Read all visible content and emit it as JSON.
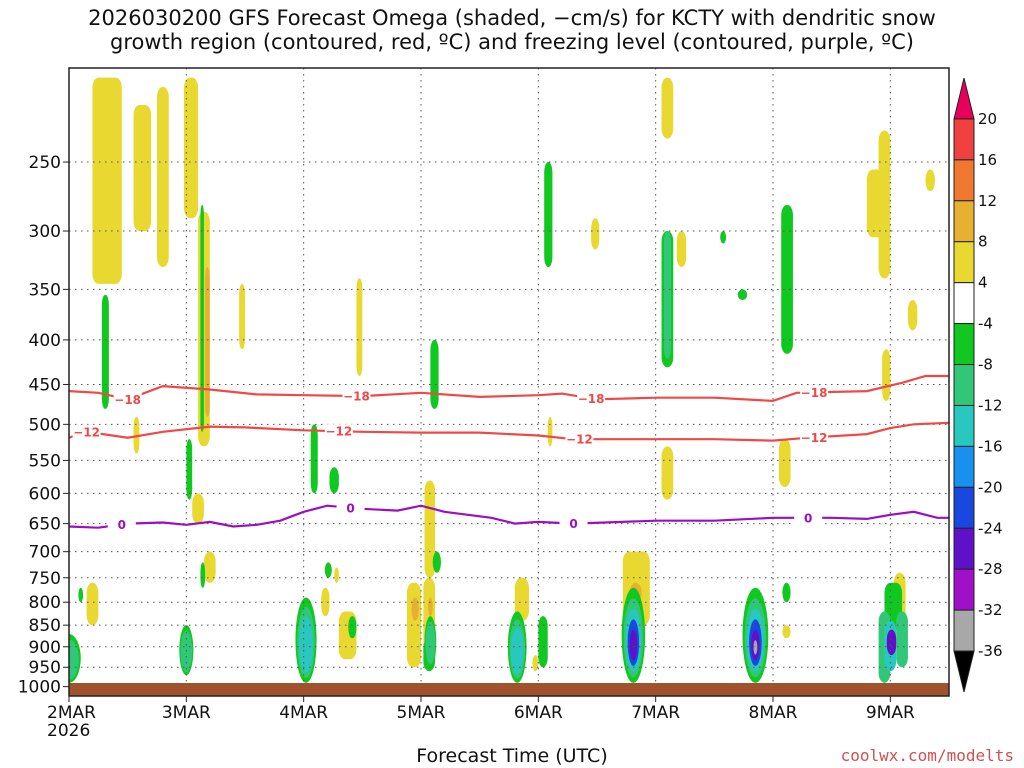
{
  "chart_data": {
    "type": "heatmap",
    "title_line1": "2026030200 GFS Forecast Omega (shaded, −cm/s) for KCTY with dendritic snow",
    "title_line2": "growth region (contoured, red, ºC) and freezing level (contoured, purple, ºC)",
    "xlabel": "Forecast Time (UTC)",
    "ylabel": "",
    "y_scale": "log-pressure",
    "y_range": [
      1025,
      195
    ],
    "y_ticks": [
      250,
      300,
      350,
      400,
      450,
      500,
      550,
      600,
      650,
      700,
      750,
      800,
      850,
      900,
      950,
      1000
    ],
    "x_range": [
      0,
      7.5
    ],
    "x_ticks": [
      {
        "day": 0,
        "label": "2MAR",
        "sub": "2026"
      },
      {
        "day": 1,
        "label": "3MAR",
        "sub": ""
      },
      {
        "day": 2,
        "label": "4MAR",
        "sub": ""
      },
      {
        "day": 3,
        "label": "5MAR",
        "sub": ""
      },
      {
        "day": 4,
        "label": "6MAR",
        "sub": ""
      },
      {
        "day": 5,
        "label": "7MAR",
        "sub": ""
      },
      {
        "day": 6,
        "label": "8MAR",
        "sub": ""
      },
      {
        "day": 7,
        "label": "9MAR",
        "sub": ""
      }
    ],
    "grid": true,
    "colorbar": {
      "levels": [
        "20",
        "16",
        "12",
        "8",
        "4",
        "-4",
        "-8",
        "-12",
        "-16",
        "-20",
        "-24",
        "-28",
        "-32",
        "-36"
      ],
      "colors": [
        "#e8005a",
        "#f04040",
        "#f07830",
        "#e8b030",
        "#e8d830",
        "#ffffff",
        "#10c820",
        "#30c878",
        "#28c8c0",
        "#1890f0",
        "#1848e0",
        "#6010c8",
        "#a010c8",
        "#a8a8a8",
        "#000000"
      ]
    },
    "contours": [
      {
        "name": "-18",
        "color": "#f04848",
        "points": [
          [
            0,
            458
          ],
          [
            0.25,
            460
          ],
          [
            0.5,
            468
          ],
          [
            0.8,
            452
          ],
          [
            1.2,
            456
          ],
          [
            1.6,
            462
          ],
          [
            2.0,
            463
          ],
          [
            2.5,
            464
          ],
          [
            3.0,
            460
          ],
          [
            3.5,
            465
          ],
          [
            4.0,
            463
          ],
          [
            4.2,
            461
          ],
          [
            4.5,
            468
          ],
          [
            5.0,
            466
          ],
          [
            5.5,
            466
          ],
          [
            6.0,
            470
          ],
          [
            6.2,
            460
          ],
          [
            6.8,
            458
          ],
          [
            7.1,
            448
          ],
          [
            7.3,
            440
          ],
          [
            7.5,
            440
          ]
        ],
        "label_days": [
          0.5,
          2.45,
          4.45,
          6.35
        ]
      },
      {
        "name": "-12",
        "color": "#f04848",
        "points": [
          [
            0,
            518
          ],
          [
            0.15,
            510
          ],
          [
            0.5,
            518
          ],
          [
            0.8,
            510
          ],
          [
            1.2,
            503
          ],
          [
            1.5,
            504
          ],
          [
            2.0,
            508
          ],
          [
            2.5,
            510
          ],
          [
            3.0,
            511
          ],
          [
            3.5,
            511
          ],
          [
            4.0,
            515
          ],
          [
            4.3,
            520
          ],
          [
            5.0,
            520
          ],
          [
            5.5,
            520
          ],
          [
            6.0,
            522
          ],
          [
            6.3,
            518
          ],
          [
            6.8,
            513
          ],
          [
            7.0,
            505
          ],
          [
            7.2,
            500
          ],
          [
            7.5,
            498
          ]
        ],
        "label_days": [
          0.15,
          2.3,
          4.35,
          6.35
        ]
      },
      {
        "name": "0",
        "color": "#9a10c0",
        "points": [
          [
            0,
            655
          ],
          [
            0.25,
            657
          ],
          [
            0.5,
            650
          ],
          [
            0.8,
            648
          ],
          [
            1.0,
            652
          ],
          [
            1.2,
            647
          ],
          [
            1.4,
            655
          ],
          [
            1.6,
            652
          ],
          [
            1.8,
            645
          ],
          [
            2.0,
            630
          ],
          [
            2.2,
            620
          ],
          [
            2.5,
            625
          ],
          [
            2.8,
            628
          ],
          [
            3.0,
            620
          ],
          [
            3.2,
            630
          ],
          [
            3.4,
            635
          ],
          [
            3.6,
            640
          ],
          [
            3.8,
            650
          ],
          [
            4.0,
            647
          ],
          [
            4.3,
            650
          ],
          [
            5.0,
            645
          ],
          [
            5.5,
            645
          ],
          [
            6.0,
            640
          ],
          [
            6.5,
            640
          ],
          [
            6.8,
            642
          ],
          [
            7.0,
            635
          ],
          [
            7.2,
            630
          ],
          [
            7.4,
            640
          ],
          [
            7.5,
            640
          ]
        ],
        "label_days": [
          0.45,
          2.4,
          4.3,
          6.3
        ]
      }
    ],
    "omega_regions": [
      {
        "day0": 0.2,
        "day1": 0.45,
        "p0": 200,
        "p1": 345,
        "value": 5
      },
      {
        "day0": 0.55,
        "day1": 0.7,
        "p0": 215,
        "p1": 300,
        "value": 5
      },
      {
        "day0": 0.75,
        "day1": 0.85,
        "p0": 205,
        "p1": 330,
        "value": 5
      },
      {
        "day0": 0.98,
        "day1": 1.1,
        "p0": 200,
        "p1": 290,
        "value": 5
      },
      {
        "day0": 1.1,
        "day1": 1.2,
        "p0": 285,
        "p1": 530,
        "value": 6
      },
      {
        "day0": 1.16,
        "day1": 1.2,
        "p0": 330,
        "p1": 490,
        "value": 9
      },
      {
        "day0": 1.12,
        "day1": 1.15,
        "p0": 280,
        "p1": 510,
        "value": -6
      },
      {
        "day0": 0.28,
        "day1": 0.34,
        "p0": 355,
        "p1": 480,
        "value": -6
      },
      {
        "day0": 0.55,
        "day1": 0.6,
        "p0": 490,
        "p1": 540,
        "value": 5
      },
      {
        "day0": 1.0,
        "day1": 1.05,
        "p0": 520,
        "p1": 610,
        "value": -6
      },
      {
        "day0": 1.45,
        "day1": 1.5,
        "p0": 345,
        "p1": 410,
        "value": 5
      },
      {
        "day0": 2.45,
        "day1": 2.5,
        "p0": 340,
        "p1": 440,
        "value": 5
      },
      {
        "day0": 3.03,
        "day1": 3.12,
        "p0": 580,
        "p1": 750,
        "value": 5
      },
      {
        "day0": 3.08,
        "day1": 3.15,
        "p0": 400,
        "p1": 480,
        "value": -6
      },
      {
        "day0": 4.05,
        "day1": 4.12,
        "p0": 250,
        "p1": 330,
        "value": -6
      },
      {
        "day0": 4.08,
        "day1": 4.12,
        "p0": 490,
        "p1": 530,
        "value": 5
      },
      {
        "day0": 4.45,
        "day1": 4.52,
        "p0": 290,
        "p1": 315,
        "value": 5
      },
      {
        "day0": 5.05,
        "day1": 5.15,
        "p0": 200,
        "p1": 235,
        "value": 5
      },
      {
        "day0": 5.05,
        "day1": 5.15,
        "p0": 300,
        "p1": 430,
        "value": -6
      },
      {
        "day0": 5.07,
        "day1": 5.13,
        "p0": 300,
        "p1": 420,
        "value": -10
      },
      {
        "day0": 5.18,
        "day1": 5.26,
        "p0": 300,
        "p1": 330,
        "value": 5
      },
      {
        "day0": 5.05,
        "day1": 5.15,
        "p0": 530,
        "p1": 610,
        "value": 5
      },
      {
        "day0": 5.55,
        "day1": 5.6,
        "p0": 300,
        "p1": 310,
        "value": -6
      },
      {
        "day0": 5.7,
        "day1": 5.78,
        "p0": 350,
        "p1": 360,
        "value": -6
      },
      {
        "day0": 6.07,
        "day1": 6.17,
        "p0": 280,
        "p1": 415,
        "value": -6
      },
      {
        "day0": 6.05,
        "day1": 6.15,
        "p0": 520,
        "p1": 590,
        "value": 5
      },
      {
        "day0": 6.08,
        "day1": 6.15,
        "p0": 760,
        "p1": 800,
        "value": -6
      },
      {
        "day0": 6.08,
        "day1": 6.15,
        "p0": 850,
        "p1": 880,
        "value": 5
      },
      {
        "day0": 6.8,
        "day1": 7.0,
        "p0": 255,
        "p1": 305,
        "value": 5
      },
      {
        "day0": 6.9,
        "day1": 7.0,
        "p0": 230,
        "p1": 340,
        "value": 5
      },
      {
        "day0": 7.15,
        "day1": 7.23,
        "p0": 360,
        "p1": 390,
        "value": 5
      },
      {
        "day0": 7.3,
        "day1": 7.38,
        "p0": 255,
        "p1": 270,
        "value": 5
      },
      {
        "day0": 6.93,
        "day1": 7.0,
        "p0": 410,
        "p1": 470,
        "value": 5
      },
      {
        "day0": 7.03,
        "day1": 7.13,
        "p0": 740,
        "p1": 840,
        "value": 5
      },
      {
        "day0": 0.15,
        "day1": 0.25,
        "p0": 760,
        "p1": 850,
        "value": 5
      },
      {
        "day0": 0.05,
        "day1": 0.1,
        "p0": 900,
        "p1": 950,
        "value": 5
      },
      {
        "day0": 1.15,
        "day1": 1.25,
        "p0": 700,
        "p1": 760,
        "value": 5
      },
      {
        "day0": 1.12,
        "day1": 1.16,
        "p0": 720,
        "p1": 770,
        "value": -6
      },
      {
        "day0": 0.08,
        "day1": 0.12,
        "p0": 770,
        "p1": 800,
        "value": -6
      },
      {
        "day0": 1.05,
        "day1": 1.15,
        "p0": 600,
        "p1": 650,
        "value": 5
      },
      {
        "day0": 2.15,
        "day1": 2.22,
        "p0": 770,
        "p1": 830,
        "value": 5
      },
      {
        "day0": 2.18,
        "day1": 2.24,
        "p0": 720,
        "p1": 750,
        "value": -6
      },
      {
        "day0": 2.22,
        "day1": 2.3,
        "p0": 560,
        "p1": 600,
        "value": -6
      },
      {
        "day0": 2.06,
        "day1": 2.12,
        "p0": 500,
        "p1": 600,
        "value": -6
      },
      {
        "day0": 2.26,
        "day1": 2.3,
        "p0": 730,
        "p1": 760,
        "value": 5
      },
      {
        "day0": 2.3,
        "day1": 2.45,
        "p0": 820,
        "p1": 930,
        "value": 5
      },
      {
        "day0": 2.38,
        "day1": 2.45,
        "p0": 830,
        "p1": 880,
        "value": -6
      },
      {
        "day0": 2.88,
        "day1": 3.0,
        "p0": 760,
        "p1": 950,
        "value": 5
      },
      {
        "day0": 2.92,
        "day1": 2.98,
        "p0": 790,
        "p1": 840,
        "value": 10
      },
      {
        "day0": 3.02,
        "day1": 3.12,
        "p0": 750,
        "p1": 920,
        "value": 5
      },
      {
        "day0": 3.06,
        "day1": 3.1,
        "p0": 790,
        "p1": 830,
        "value": 10
      },
      {
        "day0": 3.02,
        "day1": 3.12,
        "p0": 880,
        "p1": 960,
        "value": -6
      },
      {
        "day0": 3.1,
        "day1": 3.17,
        "p0": 700,
        "p1": 740,
        "value": -6
      },
      {
        "day0": 3.8,
        "day1": 3.92,
        "p0": 750,
        "p1": 840,
        "value": 5
      },
      {
        "day0": 3.95,
        "day1": 4.0,
        "p0": 920,
        "p1": 960,
        "value": 5
      },
      {
        "day0": 4.0,
        "day1": 4.08,
        "p0": 830,
        "p1": 950,
        "value": -6
      },
      {
        "day0": 4.72,
        "day1": 4.95,
        "p0": 700,
        "p1": 850,
        "value": 5
      },
      {
        "day0": 4.78,
        "day1": 4.88,
        "p0": 760,
        "p1": 800,
        "value": 10
      },
      {
        "day0": 6.95,
        "day1": 7.1,
        "p0": 760,
        "p1": 860,
        "value": -6
      },
      {
        "day0": 7.05,
        "day1": 7.15,
        "p0": 820,
        "p1": 950,
        "value": -10
      },
      {
        "day0": 6.9,
        "day1": 7.0,
        "p0": 820,
        "p1": 990,
        "value": -10
      },
      {
        "day0": 6.95,
        "day1": 7.05,
        "p0": 840,
        "p1": 960,
        "value": -16
      },
      {
        "day0": 6.97,
        "day1": 7.05,
        "p0": 860,
        "p1": 920,
        "value": -28
      }
    ],
    "omega_cores": [
      {
        "day": 0.0,
        "p_top": 870,
        "p_bot": 990,
        "half_width": 0.1,
        "levels": [
          -6,
          -10
        ],
        "value": -6
      },
      {
        "day": 2.02,
        "p_top": 790,
        "p_bot": 990,
        "half_width": 0.09,
        "levels": [
          -6,
          -10,
          -16
        ],
        "value": -16
      },
      {
        "day": 3.82,
        "p_top": 820,
        "p_bot": 990,
        "half_width": 0.08,
        "levels": [
          -6,
          -10,
          -16
        ],
        "value": -16
      },
      {
        "day": 4.81,
        "p_top": 770,
        "p_bot": 990,
        "half_width": 0.1,
        "levels": [
          -6,
          -10,
          -16,
          -24,
          -28
        ],
        "value": -28
      },
      {
        "day": 5.85,
        "p_top": 770,
        "p_bot": 990,
        "half_width": 0.11,
        "levels": [
          -6,
          -10,
          -16,
          -24,
          -28,
          -34
        ],
        "value": -34
      },
      {
        "day": 3.08,
        "p_top": 830,
        "p_bot": 950,
        "half_width": 0.05,
        "levels": [
          -6,
          -10
        ],
        "value": -10
      },
      {
        "day": 1.0,
        "p_top": 850,
        "p_bot": 970,
        "half_width": 0.06,
        "levels": [
          -6,
          -10
        ],
        "value": -10
      }
    ]
  }
}
